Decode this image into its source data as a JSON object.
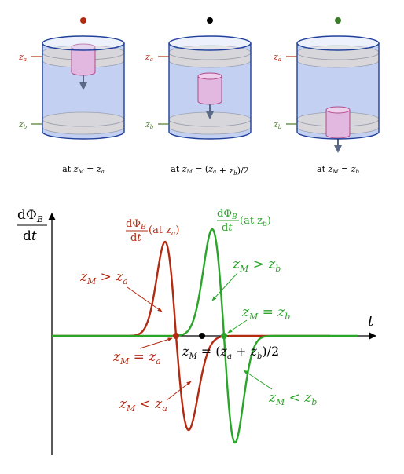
{
  "colors": {
    "red": "#b22a10",
    "green": "#2aa52a",
    "black": "#000000",
    "tube_fill": "#b8c8f0",
    "tube_stroke": "#1f3f9a",
    "ring_fill": "#e8dcc8",
    "magnet_fill": "#e2b8e0",
    "magnet_stroke": "#b0488a",
    "arrow_gray": "#5a6a86"
  },
  "top_panel": {
    "cylinders": [
      {
        "dot_color": "red",
        "za_label": "z",
        "za_sub": "a",
        "zb_label": "z",
        "zb_sub": "b",
        "caption": {
          "pre": "at ",
          "z": "z",
          "M": "M",
          "eq": " = ",
          "rhs_z": "z",
          "rhs_sub": "a",
          "rhs_tail": ""
        }
      },
      {
        "dot_color": "black",
        "za_label": "z",
        "za_sub": "a",
        "zb_label": "z",
        "zb_sub": "b",
        "caption": {
          "pre": "at ",
          "z": "z",
          "M": "M",
          "eq": " = (",
          "rhs_z": "z",
          "rhs_sub": "a",
          "rhs_tail": "+ z_b)/2"
        }
      },
      {
        "dot_color": "green",
        "za_label": "z",
        "za_sub": "a",
        "zb_label": "z",
        "zb_sub": "b",
        "caption": {
          "pre": "at ",
          "z": "z",
          "M": "M",
          "eq": " = ",
          "rhs_z": "z",
          "rhs_sub": "b",
          "rhs_tail": ""
        }
      }
    ]
  },
  "graph": {
    "y_axis_label": {
      "num": "dΦ",
      "num_sub": "B",
      "den": "dt"
    },
    "x_axis_label": "t",
    "red_curve_label": {
      "num": "dΦ",
      "num_sub": "B",
      "den": "dt",
      "at": "(at z",
      "at_sub": "a",
      "at_close": ")"
    },
    "green_curve_label": {
      "num": "dΦ",
      "num_sub": "B",
      "den": "dt",
      "at": "(at z",
      "at_sub": "b",
      "at_close": ")"
    },
    "annotations": {
      "red_gt": {
        "z": "z",
        "sub": "M",
        "rel": " > ",
        "rhs": "z",
        "rhs_sub": "a"
      },
      "red_eq": {
        "z": "z",
        "sub": "M",
        "rel": " = ",
        "rhs": "z",
        "rhs_sub": "a"
      },
      "red_lt": {
        "z": "z",
        "sub": "M",
        "rel": " < ",
        "rhs": "z",
        "rhs_sub": "a"
      },
      "green_gt": {
        "z": "z",
        "sub": "M",
        "rel": " > ",
        "rhs": "z",
        "rhs_sub": "b"
      },
      "green_eq": {
        "z": "z",
        "sub": "M",
        "rel": " = ",
        "rhs": "z",
        "rhs_sub": "b"
      },
      "green_lt": {
        "z": "z",
        "sub": "M",
        "rel": " < ",
        "rhs": "z",
        "rhs_sub": "b"
      },
      "mid": {
        "z": "z",
        "sub": "M",
        "rel": " = (",
        "a": "z",
        "a_sub": "a",
        "plus": " + ",
        "b": "z",
        "b_sub": "b",
        "tail": ")/2"
      }
    }
  }
}
